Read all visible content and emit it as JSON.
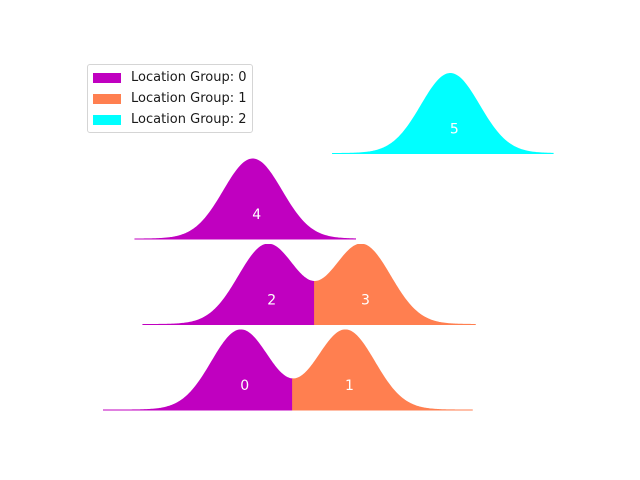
{
  "chart_data": {
    "type": "area",
    "colors": {
      "group_0": "#c000c0",
      "group_1": "#ff7f50",
      "group_2": "#00ffff"
    },
    "legend": {
      "placement": "top-left",
      "entries": [
        {
          "label": "Location Group: 0",
          "group": 0
        },
        {
          "label": "Location Group: 1",
          "group": 1
        },
        {
          "label": "Location Group: 2",
          "group": 2
        }
      ]
    },
    "grid": false,
    "axes_visible": false,
    "rows": [
      {
        "level": 0,
        "x_start": 0.0,
        "x_end": 3.7,
        "split_x": 1.9,
        "peaks": [
          {
            "label": "0",
            "mean": 1.38,
            "sd": 0.29,
            "group": 0
          },
          {
            "label": "1",
            "mean": 2.43,
            "sd": 0.29,
            "group": 1
          }
        ]
      },
      {
        "level": 1,
        "x_start": 0.4,
        "x_end": 3.73,
        "split_x": 2.12,
        "peaks": [
          {
            "label": "2",
            "mean": 1.65,
            "sd": 0.29,
            "group": 0
          },
          {
            "label": "3",
            "mean": 2.59,
            "sd": 0.29,
            "group": 1
          }
        ]
      },
      {
        "level": 2,
        "x_start": 0.32,
        "x_end": 2.53,
        "split_x": null,
        "peaks": [
          {
            "label": "4",
            "mean": 1.5,
            "sd": 0.29,
            "group": 0
          }
        ]
      },
      {
        "level": 3,
        "x_start": 2.3,
        "x_end": 4.51,
        "split_x": null,
        "peaks": [
          {
            "label": "5",
            "mean": 3.48,
            "sd": 0.29,
            "group": 2
          }
        ]
      }
    ]
  }
}
